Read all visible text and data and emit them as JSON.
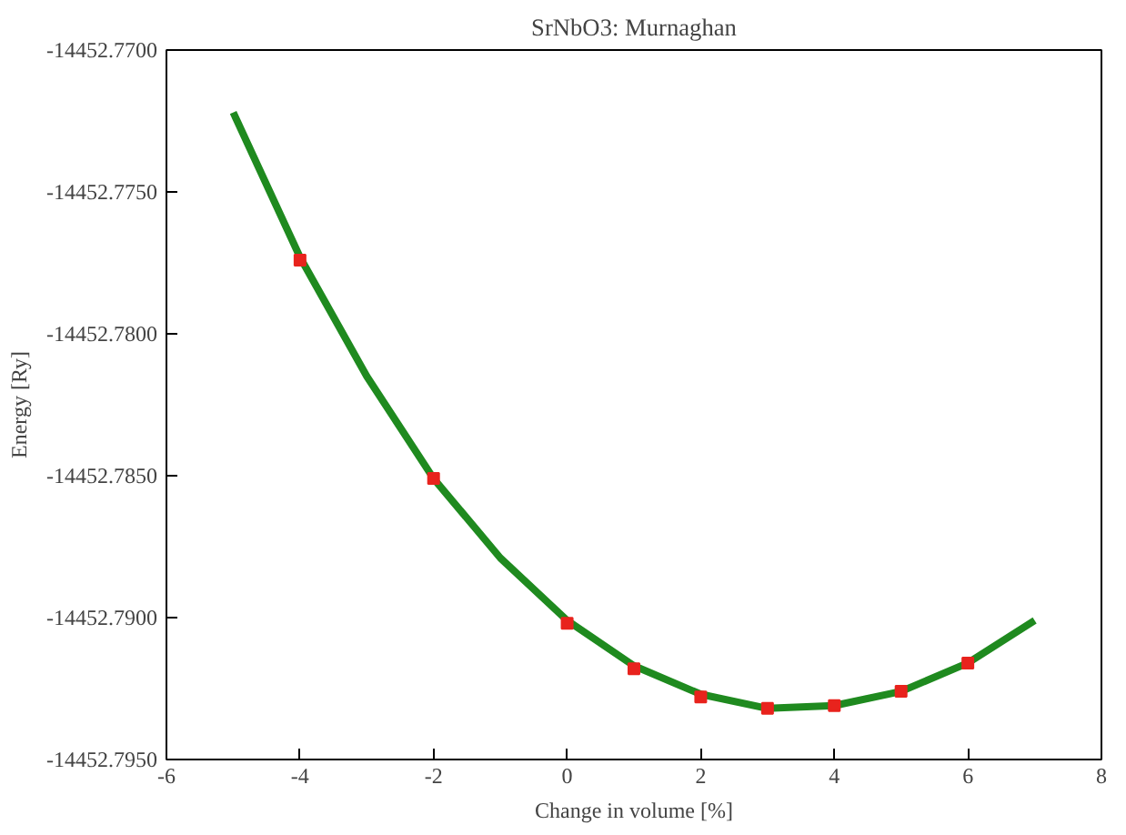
{
  "chart_data": {
    "type": "line",
    "title": "SrNbO3: Murnaghan",
    "xlabel": "Change in volume [%]",
    "ylabel": "Energy [Ry]",
    "xlim": [
      -6,
      8
    ],
    "xticks": [
      -6,
      -4,
      -2,
      0,
      2,
      4,
      6,
      8
    ],
    "ylim": [
      -14452.795,
      -14452.77
    ],
    "yticks": [
      {
        "value": -14452.795,
        "label": "-14452.7950"
      },
      {
        "value": -14452.79,
        "label": "-14452.7900"
      },
      {
        "value": -14452.785,
        "label": "-14452.7850"
      },
      {
        "value": -14452.78,
        "label": "-14452.7800"
      },
      {
        "value": -14452.775,
        "label": "-14452.7750"
      },
      {
        "value": -14452.77,
        "label": "-14452.7700"
      }
    ],
    "grid": false,
    "series": [
      {
        "color": "#1f8a1f",
        "x": [
          -5,
          -4,
          -3,
          -2,
          -1,
          0,
          1,
          2,
          3,
          4,
          5,
          6,
          7
        ],
        "values": [
          -14452.7722,
          -14452.7773,
          -14452.7815,
          -14452.7851,
          -14452.7879,
          -14452.7901,
          -14452.7917,
          -14452.7927,
          -14452.7932,
          -14452.7931,
          -14452.7926,
          -14452.7916,
          -14452.7901
        ]
      },
      {
        "type": "scatter",
        "color": "#e8231d",
        "marker": "square",
        "x": [
          -4,
          -2,
          0,
          1,
          2,
          3,
          4,
          5,
          6
        ],
        "values": [
          -14452.7774,
          -14452.7851,
          -14452.7902,
          -14452.7918,
          -14452.7928,
          -14452.7932,
          -14452.7931,
          -14452.7926,
          -14452.7916
        ]
      }
    ]
  }
}
